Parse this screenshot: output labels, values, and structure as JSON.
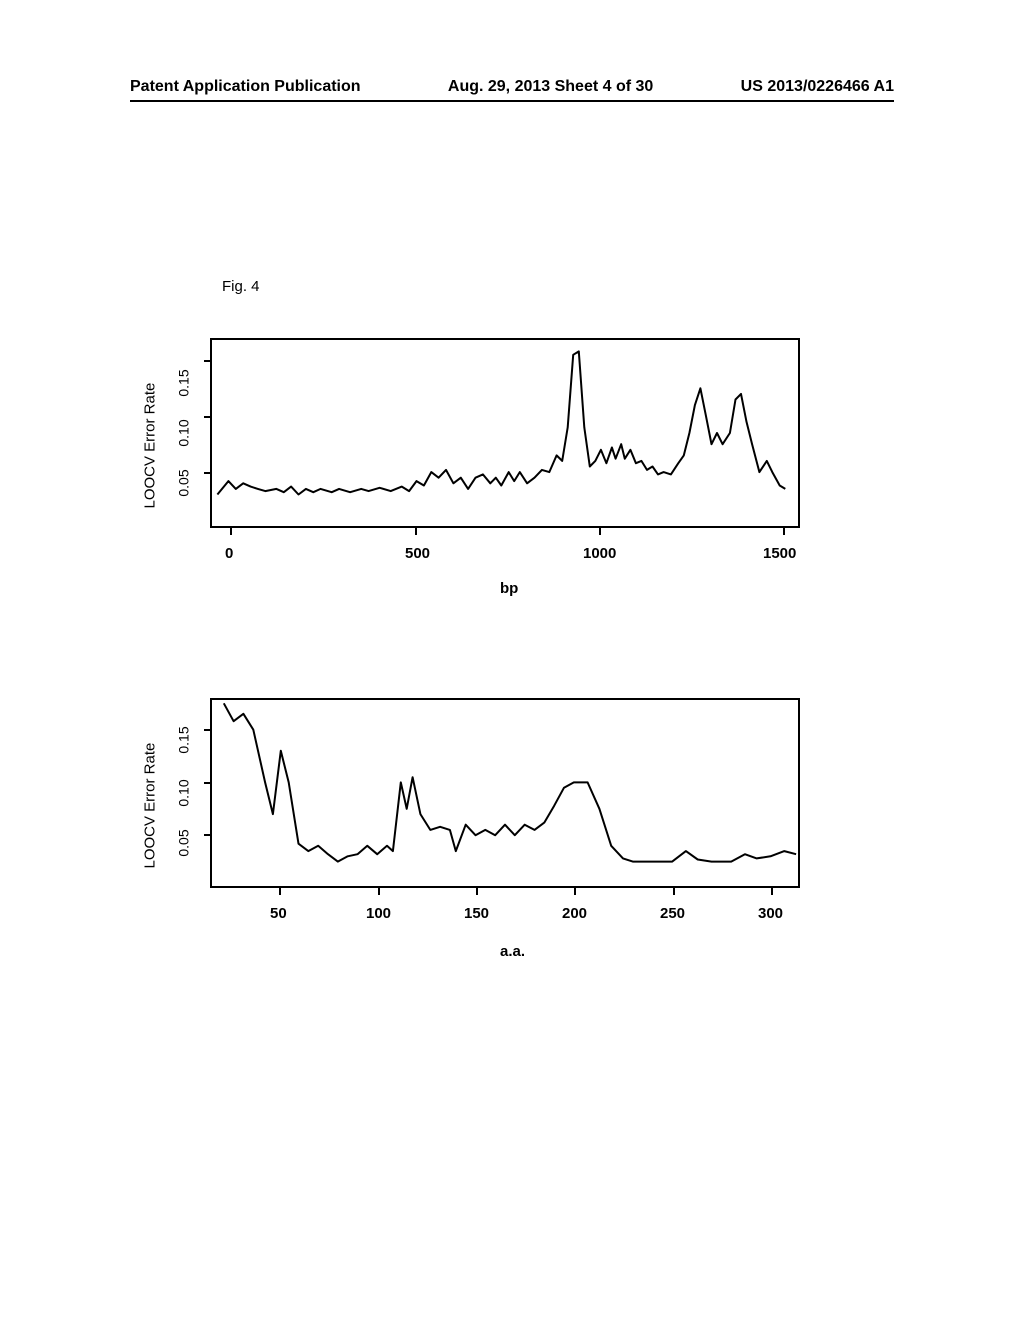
{
  "header": {
    "left": "Patent Application Publication",
    "center": "Aug. 29, 2013  Sheet 4 of 30",
    "right": "US 2013/0226466 A1"
  },
  "figure_label": "Fig. 4",
  "chart1": {
    "type": "line",
    "ylabel": "LOOCV Error Rate",
    "xlabel": "bp",
    "ylim": [
      0,
      0.17
    ],
    "xlim": [
      0,
      1600
    ],
    "yticks": [
      0.05,
      0.1,
      0.15
    ],
    "ytick_labels": [
      "0.05",
      "0.10",
      "0.15"
    ],
    "xticks": [
      0,
      500,
      1000,
      1500
    ],
    "xtick_labels": [
      "0",
      "500",
      "1000",
      "1500"
    ],
    "line_color": "#000000",
    "line_width": 2,
    "background_color": "#ffffff",
    "box_color": "#000000",
    "data": [
      [
        20,
        0.03
      ],
      [
        50,
        0.042
      ],
      [
        70,
        0.035
      ],
      [
        90,
        0.04
      ],
      [
        110,
        0.037
      ],
      [
        130,
        0.035
      ],
      [
        150,
        0.033
      ],
      [
        180,
        0.035
      ],
      [
        200,
        0.032
      ],
      [
        220,
        0.037
      ],
      [
        240,
        0.03
      ],
      [
        260,
        0.035
      ],
      [
        280,
        0.032
      ],
      [
        300,
        0.035
      ],
      [
        330,
        0.032
      ],
      [
        350,
        0.035
      ],
      [
        380,
        0.032
      ],
      [
        410,
        0.035
      ],
      [
        430,
        0.033
      ],
      [
        460,
        0.036
      ],
      [
        490,
        0.033
      ],
      [
        520,
        0.037
      ],
      [
        540,
        0.033
      ],
      [
        560,
        0.042
      ],
      [
        580,
        0.038
      ],
      [
        600,
        0.05
      ],
      [
        620,
        0.045
      ],
      [
        640,
        0.052
      ],
      [
        660,
        0.04
      ],
      [
        680,
        0.045
      ],
      [
        700,
        0.035
      ],
      [
        720,
        0.045
      ],
      [
        740,
        0.048
      ],
      [
        760,
        0.04
      ],
      [
        775,
        0.045
      ],
      [
        790,
        0.038
      ],
      [
        810,
        0.05
      ],
      [
        825,
        0.042
      ],
      [
        840,
        0.05
      ],
      [
        860,
        0.04
      ],
      [
        880,
        0.045
      ],
      [
        900,
        0.052
      ],
      [
        920,
        0.05
      ],
      [
        940,
        0.065
      ],
      [
        955,
        0.06
      ],
      [
        970,
        0.09
      ],
      [
        985,
        0.155
      ],
      [
        1000,
        0.158
      ],
      [
        1015,
        0.09
      ],
      [
        1030,
        0.055
      ],
      [
        1045,
        0.06
      ],
      [
        1060,
        0.07
      ],
      [
        1075,
        0.058
      ],
      [
        1090,
        0.072
      ],
      [
        1100,
        0.062
      ],
      [
        1115,
        0.075
      ],
      [
        1125,
        0.062
      ],
      [
        1140,
        0.07
      ],
      [
        1155,
        0.058
      ],
      [
        1170,
        0.06
      ],
      [
        1185,
        0.052
      ],
      [
        1200,
        0.055
      ],
      [
        1215,
        0.048
      ],
      [
        1230,
        0.05
      ],
      [
        1250,
        0.048
      ],
      [
        1270,
        0.058
      ],
      [
        1285,
        0.065
      ],
      [
        1300,
        0.085
      ],
      [
        1315,
        0.11
      ],
      [
        1330,
        0.125
      ],
      [
        1345,
        0.1
      ],
      [
        1360,
        0.075
      ],
      [
        1375,
        0.085
      ],
      [
        1390,
        0.075
      ],
      [
        1410,
        0.085
      ],
      [
        1425,
        0.115
      ],
      [
        1440,
        0.12
      ],
      [
        1455,
        0.095
      ],
      [
        1470,
        0.075
      ],
      [
        1490,
        0.05
      ],
      [
        1510,
        0.06
      ],
      [
        1525,
        0.05
      ],
      [
        1545,
        0.038
      ],
      [
        1560,
        0.035
      ]
    ]
  },
  "chart2": {
    "type": "line",
    "ylabel": "LOOCV Error Rate",
    "xlabel": "a.a.",
    "ylim": [
      0,
      0.18
    ],
    "xlim": [
      20,
      320
    ],
    "yticks": [
      0.05,
      0.1,
      0.15
    ],
    "ytick_labels": [
      "0.05",
      "0.10",
      "0.15"
    ],
    "xticks": [
      50,
      100,
      150,
      200,
      250,
      300
    ],
    "xtick_labels": [
      "50",
      "100",
      "150",
      "200",
      "250",
      "300"
    ],
    "line_color": "#000000",
    "line_width": 2,
    "background_color": "#ffffff",
    "box_color": "#000000",
    "data": [
      [
        27,
        0.175
      ],
      [
        32,
        0.158
      ],
      [
        37,
        0.165
      ],
      [
        42,
        0.15
      ],
      [
        48,
        0.1
      ],
      [
        52,
        0.07
      ],
      [
        56,
        0.13
      ],
      [
        60,
        0.1
      ],
      [
        65,
        0.042
      ],
      [
        70,
        0.035
      ],
      [
        75,
        0.04
      ],
      [
        80,
        0.032
      ],
      [
        85,
        0.025
      ],
      [
        90,
        0.03
      ],
      [
        95,
        0.032
      ],
      [
        100,
        0.04
      ],
      [
        105,
        0.032
      ],
      [
        110,
        0.04
      ],
      [
        113,
        0.035
      ],
      [
        117,
        0.1
      ],
      [
        120,
        0.075
      ],
      [
        123,
        0.105
      ],
      [
        127,
        0.07
      ],
      [
        132,
        0.055
      ],
      [
        137,
        0.058
      ],
      [
        142,
        0.055
      ],
      [
        145,
        0.035
      ],
      [
        150,
        0.06
      ],
      [
        155,
        0.05
      ],
      [
        160,
        0.055
      ],
      [
        165,
        0.05
      ],
      [
        170,
        0.06
      ],
      [
        175,
        0.05
      ],
      [
        180,
        0.06
      ],
      [
        185,
        0.055
      ],
      [
        190,
        0.062
      ],
      [
        195,
        0.078
      ],
      [
        200,
        0.095
      ],
      [
        205,
        0.1
      ],
      [
        212,
        0.1
      ],
      [
        218,
        0.075
      ],
      [
        224,
        0.04
      ],
      [
        230,
        0.028
      ],
      [
        235,
        0.025
      ],
      [
        245,
        0.025
      ],
      [
        255,
        0.025
      ],
      [
        262,
        0.035
      ],
      [
        268,
        0.027
      ],
      [
        275,
        0.025
      ],
      [
        285,
        0.025
      ],
      [
        292,
        0.032
      ],
      [
        298,
        0.028
      ],
      [
        305,
        0.03
      ],
      [
        312,
        0.035
      ],
      [
        318,
        0.032
      ]
    ]
  }
}
